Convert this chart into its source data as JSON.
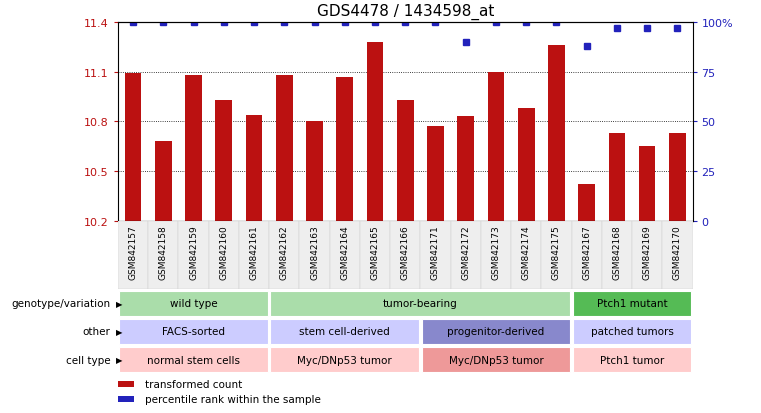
{
  "title": "GDS4478 / 1434598_at",
  "samples": [
    "GSM842157",
    "GSM842158",
    "GSM842159",
    "GSM842160",
    "GSM842161",
    "GSM842162",
    "GSM842163",
    "GSM842164",
    "GSM842165",
    "GSM842166",
    "GSM842171",
    "GSM842172",
    "GSM842173",
    "GSM842174",
    "GSM842175",
    "GSM842167",
    "GSM842168",
    "GSM842169",
    "GSM842170"
  ],
  "bar_values": [
    11.09,
    10.68,
    11.08,
    10.93,
    10.84,
    11.08,
    10.8,
    11.07,
    11.28,
    10.93,
    10.77,
    10.83,
    11.1,
    10.88,
    11.26,
    10.42,
    10.73,
    10.65,
    10.73
  ],
  "percentile_values": [
    100,
    100,
    100,
    100,
    100,
    100,
    100,
    100,
    100,
    100,
    100,
    90,
    100,
    100,
    100,
    88,
    97,
    97,
    97
  ],
  "ylim_left": [
    10.2,
    11.4
  ],
  "ylim_right": [
    0,
    100
  ],
  "yticks_left": [
    10.2,
    10.5,
    10.8,
    11.1,
    11.4
  ],
  "yticks_right": [
    0,
    25,
    50,
    75,
    100
  ],
  "bar_color": "#BB1111",
  "dot_color": "#2222BB",
  "bar_bottom": 10.2,
  "annot_rows": [
    {
      "label": "genotype/variation",
      "groups": [
        {
          "text": "wild type",
          "start": 0,
          "end": 5,
          "color": "#AADDAA"
        },
        {
          "text": "tumor-bearing",
          "start": 5,
          "end": 15,
          "color": "#AADDAA"
        },
        {
          "text": "Ptch1 mutant",
          "start": 15,
          "end": 19,
          "color": "#55BB55"
        }
      ]
    },
    {
      "label": "other",
      "groups": [
        {
          "text": "FACS-sorted",
          "start": 0,
          "end": 5,
          "color": "#CCCCFF"
        },
        {
          "text": "stem cell-derived",
          "start": 5,
          "end": 10,
          "color": "#CCCCFF"
        },
        {
          "text": "progenitor-derived",
          "start": 10,
          "end": 15,
          "color": "#8888CC"
        },
        {
          "text": "patched tumors",
          "start": 15,
          "end": 19,
          "color": "#CCCCFF"
        }
      ]
    },
    {
      "label": "cell type",
      "groups": [
        {
          "text": "normal stem cells",
          "start": 0,
          "end": 5,
          "color": "#FFCCCC"
        },
        {
          "text": "Myc/DNp53 tumor",
          "start": 5,
          "end": 10,
          "color": "#FFCCCC"
        },
        {
          "text": "Myc/DNp53 tumor",
          "start": 10,
          "end": 15,
          "color": "#EE9999"
        },
        {
          "text": "Ptch1 tumor",
          "start": 15,
          "end": 19,
          "color": "#FFCCCC"
        }
      ]
    }
  ],
  "legend_items": [
    {
      "color": "#BB1111",
      "label": "transformed count"
    },
    {
      "color": "#2222BB",
      "label": "percentile rank within the sample"
    }
  ]
}
